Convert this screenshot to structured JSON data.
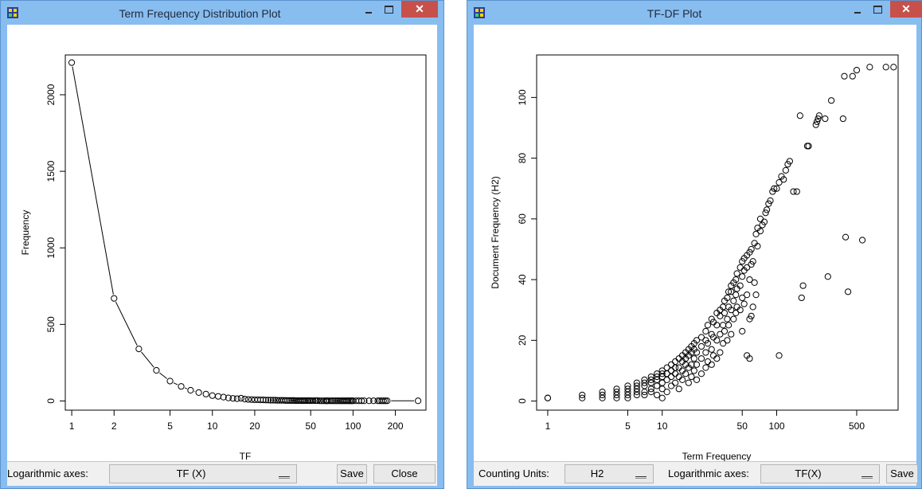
{
  "windows": [
    {
      "title": "Term Frequency Distribution Plot",
      "toolbar": {
        "axes_label": "Logarithmic axes:",
        "axes_value": "TF (X)",
        "save_label": "Save",
        "close_label": "Close"
      }
    },
    {
      "title": "TF-DF Plot",
      "toolbar": {
        "units_label": "Counting Units:",
        "units_value": "H2",
        "axes_label": "Logarithmic axes:",
        "axes_value": "TF(X)",
        "save_label": "Save"
      }
    }
  ],
  "icons": {
    "app": "app-icon",
    "minimize": "minimize-icon",
    "maximize": "maximize-icon",
    "close": "close-icon",
    "dropdown": "dropdown-arrow-icon"
  },
  "colors": {
    "titlebar": "#88bdf0",
    "close": "#c7504a",
    "toolbar": "#f0f0f0"
  },
  "chart_data": [
    {
      "type": "line",
      "xscale": "log",
      "xlabel": "TF",
      "ylabel": "Frequency",
      "xlim": [
        0.9,
        330
      ],
      "ylim": [
        -60,
        2260
      ],
      "xticks": [
        1,
        2,
        5,
        10,
        20,
        50,
        100,
        200
      ],
      "yticks": [
        0,
        500,
        1000,
        1500,
        2000
      ],
      "x": [
        1,
        2,
        3,
        4,
        5,
        6,
        7,
        8,
        9,
        10,
        11,
        12,
        13,
        14,
        15,
        16,
        17,
        18,
        19,
        20,
        21,
        22,
        23,
        24,
        25,
        26,
        27,
        28,
        29,
        30,
        31,
        32,
        33,
        34,
        35,
        36,
        37,
        38,
        39,
        40,
        41,
        42,
        43,
        44,
        45,
        46,
        47,
        48,
        49,
        50,
        52,
        54,
        55,
        56,
        58,
        60,
        62,
        64,
        65,
        66,
        68,
        70,
        72,
        74,
        76,
        78,
        80,
        82,
        84,
        86,
        88,
        90,
        92,
        94,
        96,
        98,
        100,
        105,
        110,
        115,
        120,
        130,
        140,
        150,
        155,
        160,
        165,
        170,
        175,
        290
      ],
      "y": [
        2210,
        670,
        340,
        200,
        130,
        95,
        70,
        55,
        45,
        35,
        30,
        25,
        20,
        17,
        15,
        18,
        12,
        10,
        9,
        8,
        8,
        7,
        7,
        6,
        6,
        5,
        5,
        5,
        4,
        4,
        4,
        4,
        3,
        3,
        3,
        3,
        3,
        3,
        2,
        2,
        2,
        2,
        2,
        2,
        2,
        2,
        2,
        2,
        2,
        2,
        2,
        2,
        2,
        2,
        1,
        1,
        1,
        1,
        1,
        1,
        1,
        1,
        1,
        1,
        1,
        1,
        1,
        1,
        1,
        1,
        1,
        1,
        1,
        1,
        1,
        1,
        1,
        1,
        1,
        1,
        1,
        1,
        1,
        1,
        1,
        1,
        1,
        1,
        1,
        1
      ]
    },
    {
      "type": "scatter",
      "xscale": "log",
      "xlabel": "Term Frequency",
      "ylabel": "Document Frequency (H2)",
      "xlim": [
        0.8,
        1150
      ],
      "ylim": [
        -3,
        114
      ],
      "xticks": [
        1,
        5,
        10,
        50,
        100,
        500
      ],
      "yticks": [
        0,
        20,
        40,
        60,
        80,
        100
      ],
      "points": [
        [
          1,
          1
        ],
        [
          1,
          1
        ],
        [
          2,
          1
        ],
        [
          2,
          2
        ],
        [
          3,
          1
        ],
        [
          3,
          2
        ],
        [
          3,
          3
        ],
        [
          4,
          1
        ],
        [
          4,
          2
        ],
        [
          4,
          3
        ],
        [
          4,
          4
        ],
        [
          5,
          1
        ],
        [
          5,
          2
        ],
        [
          5,
          3
        ],
        [
          5,
          4
        ],
        [
          5,
          5
        ],
        [
          6,
          2
        ],
        [
          6,
          3
        ],
        [
          6,
          4
        ],
        [
          6,
          5
        ],
        [
          6,
          6
        ],
        [
          7,
          2
        ],
        [
          7,
          3
        ],
        [
          7,
          5
        ],
        [
          7,
          6
        ],
        [
          7,
          7
        ],
        [
          8,
          3
        ],
        [
          8,
          4
        ],
        [
          8,
          6
        ],
        [
          8,
          7
        ],
        [
          8,
          8
        ],
        [
          9,
          2
        ],
        [
          9,
          5
        ],
        [
          9,
          7
        ],
        [
          9,
          8
        ],
        [
          9,
          9
        ],
        [
          10,
          1
        ],
        [
          10,
          4
        ],
        [
          10,
          6
        ],
        [
          10,
          8
        ],
        [
          10,
          9
        ],
        [
          10,
          10
        ],
        [
          11,
          3
        ],
        [
          11,
          7
        ],
        [
          11,
          9
        ],
        [
          11,
          11
        ],
        [
          12,
          5
        ],
        [
          12,
          8
        ],
        [
          12,
          10
        ],
        [
          12,
          12
        ],
        [
          13,
          6
        ],
        [
          13,
          9
        ],
        [
          13,
          11
        ],
        [
          13,
          13
        ],
        [
          14,
          4
        ],
        [
          14,
          8
        ],
        [
          14,
          11
        ],
        [
          14,
          14
        ],
        [
          15,
          7
        ],
        [
          15,
          10
        ],
        [
          15,
          13
        ],
        [
          15,
          15
        ],
        [
          16,
          9
        ],
        [
          16,
          12
        ],
        [
          16,
          14
        ],
        [
          16,
          16
        ],
        [
          17,
          6
        ],
        [
          17,
          11
        ],
        [
          17,
          15
        ],
        [
          17,
          17
        ],
        [
          18,
          8
        ],
        [
          18,
          12
        ],
        [
          18,
          16
        ],
        [
          18,
          18
        ],
        [
          19,
          10
        ],
        [
          19,
          14
        ],
        [
          19,
          17
        ],
        [
          19,
          19
        ],
        [
          20,
          7
        ],
        [
          20,
          12
        ],
        [
          20,
          16
        ],
        [
          20,
          20
        ],
        [
          22,
          9
        ],
        [
          22,
          14
        ],
        [
          22,
          18
        ],
        [
          22,
          21
        ],
        [
          24,
          11
        ],
        [
          24,
          16
        ],
        [
          24,
          20
        ],
        [
          24,
          23
        ],
        [
          25,
          13
        ],
        [
          25,
          19
        ],
        [
          25,
          25
        ],
        [
          27,
          12
        ],
        [
          27,
          17
        ],
        [
          27,
          22
        ],
        [
          27,
          27
        ],
        [
          28,
          15
        ],
        [
          28,
          21
        ],
        [
          28,
          26
        ],
        [
          30,
          14
        ],
        [
          30,
          20
        ],
        [
          30,
          25
        ],
        [
          30,
          29
        ],
        [
          32,
          16
        ],
        [
          32,
          22
        ],
        [
          32,
          28
        ],
        [
          32,
          30
        ],
        [
          34,
          19
        ],
        [
          34,
          25
        ],
        [
          34,
          31
        ],
        [
          35,
          23
        ],
        [
          35,
          29
        ],
        [
          35,
          33
        ],
        [
          37,
          20
        ],
        [
          37,
          27
        ],
        [
          37,
          34
        ],
        [
          38,
          25
        ],
        [
          38,
          31
        ],
        [
          38,
          36
        ],
        [
          40,
          22
        ],
        [
          40,
          30
        ],
        [
          40,
          36
        ],
        [
          40,
          38
        ],
        [
          42,
          27
        ],
        [
          42,
          33
        ],
        [
          42,
          39
        ],
        [
          44,
          29
        ],
        [
          44,
          35
        ],
        [
          44,
          40
        ],
        [
          45,
          31
        ],
        [
          45,
          37
        ],
        [
          45,
          42
        ],
        [
          48,
          30
        ],
        [
          48,
          38
        ],
        [
          48,
          44
        ],
        [
          50,
          23
        ],
        [
          50,
          34
        ],
        [
          50,
          41
        ],
        [
          50,
          46
        ],
        [
          52,
          32
        ],
        [
          52,
          43
        ],
        [
          52,
          47
        ],
        [
          55,
          15
        ],
        [
          55,
          35
        ],
        [
          55,
          44
        ],
        [
          55,
          48
        ],
        [
          58,
          14
        ],
        [
          58,
          27
        ],
        [
          58,
          40
        ],
        [
          58,
          49
        ],
        [
          60,
          28
        ],
        [
          60,
          45
        ],
        [
          60,
          50
        ],
        [
          62,
          31
        ],
        [
          62,
          46
        ],
        [
          64,
          39
        ],
        [
          64,
          52
        ],
        [
          66,
          35
        ],
        [
          66,
          55
        ],
        [
          68,
          51
        ],
        [
          68,
          57
        ],
        [
          72,
          56
        ],
        [
          72,
          60
        ],
        [
          75,
          58
        ],
        [
          78,
          59
        ],
        [
          80,
          62
        ],
        [
          82,
          63
        ],
        [
          85,
          65
        ],
        [
          88,
          66
        ],
        [
          92,
          69
        ],
        [
          95,
          70
        ],
        [
          100,
          70
        ],
        [
          105,
          15
        ],
        [
          105,
          72
        ],
        [
          110,
          74
        ],
        [
          115,
          73
        ],
        [
          120,
          76
        ],
        [
          125,
          78
        ],
        [
          130,
          79
        ],
        [
          140,
          69
        ],
        [
          150,
          69
        ],
        [
          160,
          94
        ],
        [
          165,
          34
        ],
        [
          170,
          38
        ],
        [
          185,
          84
        ],
        [
          190,
          84
        ],
        [
          220,
          91
        ],
        [
          225,
          92
        ],
        [
          230,
          93
        ],
        [
          235,
          94
        ],
        [
          265,
          93
        ],
        [
          280,
          41
        ],
        [
          300,
          99
        ],
        [
          380,
          93
        ],
        [
          390,
          107
        ],
        [
          400,
          54
        ],
        [
          420,
          36
        ],
        [
          460,
          107
        ],
        [
          500,
          109
        ],
        [
          560,
          53
        ],
        [
          650,
          110
        ],
        [
          900,
          110
        ],
        [
          1050,
          110
        ]
      ]
    }
  ]
}
